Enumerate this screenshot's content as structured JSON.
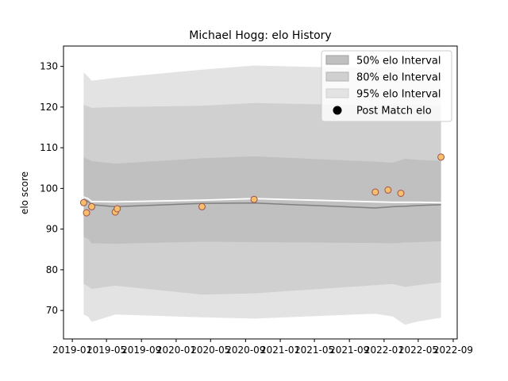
{
  "chart_data": {
    "type": "line",
    "title": "Michael Hogg: elo History",
    "xlabel": "",
    "ylabel": "elo score",
    "x_ticks": [
      "2019-01",
      "2019-05",
      "2019-09",
      "2020-01",
      "2020-05",
      "2020-09",
      "2021-01",
      "2021-05",
      "2021-09",
      "2022-01",
      "2022-05",
      "2022-09"
    ],
    "y_ticks": [
      70,
      80,
      90,
      100,
      110,
      120,
      130
    ],
    "xlim": [
      "2018-12-01",
      "2022-09-15"
    ],
    "ylim": [
      63,
      135
    ],
    "grid": false,
    "legend_position": "upper right",
    "colors": {
      "band95": "#e3e3e3",
      "band80": "#d0d0d0",
      "band50": "#c0c0c0",
      "median_line": "#808080",
      "mean_line": "#ffffff",
      "marker_fill": "#f6bf6b",
      "marker_edge": "#a0504a"
    },
    "bands": {
      "dates": [
        "2019-02-10",
        "2019-02-25",
        "2019-03-10",
        "2019-06-01",
        "2020-04-01",
        "2020-10-01",
        "2021-12-01",
        "2022-02-01",
        "2022-03-15",
        "2022-05-01",
        "2022-07-20"
      ],
      "band95": {
        "upper": [
          128.5,
          127.5,
          126.5,
          127.2,
          129.2,
          130.2,
          129.5,
          130.0,
          128.0,
          129.0,
          128.5
        ],
        "lower": [
          69.0,
          68.5,
          67.2,
          69.0,
          68.3,
          68.0,
          69.2,
          68.5,
          66.5,
          67.3,
          68.2
        ]
      },
      "band80": {
        "upper": [
          120.5,
          120.2,
          119.8,
          120.0,
          120.3,
          121.0,
          120.4,
          120.8,
          120.5,
          120.6,
          120.2
        ],
        "lower": [
          76.5,
          76.0,
          75.3,
          76.1,
          73.9,
          74.2,
          76.2,
          76.5,
          75.8,
          76.2,
          76.9
        ]
      },
      "band50": {
        "upper": [
          107.6,
          107.2,
          106.7,
          106.1,
          107.4,
          107.9,
          106.6,
          106.3,
          107.3,
          107.0,
          106.8
        ],
        "lower": [
          88.1,
          87.6,
          86.5,
          86.4,
          86.9,
          86.8,
          86.6,
          86.5,
          86.7,
          86.8,
          87.0
        ]
      },
      "median": [
        97.3,
        96.8,
        96.0,
        95.5,
        96.3,
        96.4,
        95.2,
        95.5,
        95.6,
        95.8,
        96.0
      ],
      "mean": [
        97.9,
        97.5,
        96.8,
        96.7,
        97.1,
        97.5,
        96.7,
        96.6,
        96.6,
        96.6,
        96.5
      ]
    },
    "series": [
      {
        "name": "Post Match elo",
        "x": [
          "2019-02-10",
          "2019-02-20",
          "2019-03-10",
          "2019-06-01",
          "2019-06-08",
          "2020-04-01",
          "2020-10-01",
          "2021-12-01",
          "2022-01-15",
          "2022-03-01",
          "2022-07-20"
        ],
        "y": [
          96.5,
          94.0,
          95.5,
          94.2,
          95.0,
          95.5,
          97.3,
          99.1,
          99.6,
          98.8,
          107.7
        ]
      }
    ],
    "legend": [
      "50% elo Interval",
      "80% elo Interval",
      "95% elo Interval",
      "Post Match elo"
    ]
  }
}
